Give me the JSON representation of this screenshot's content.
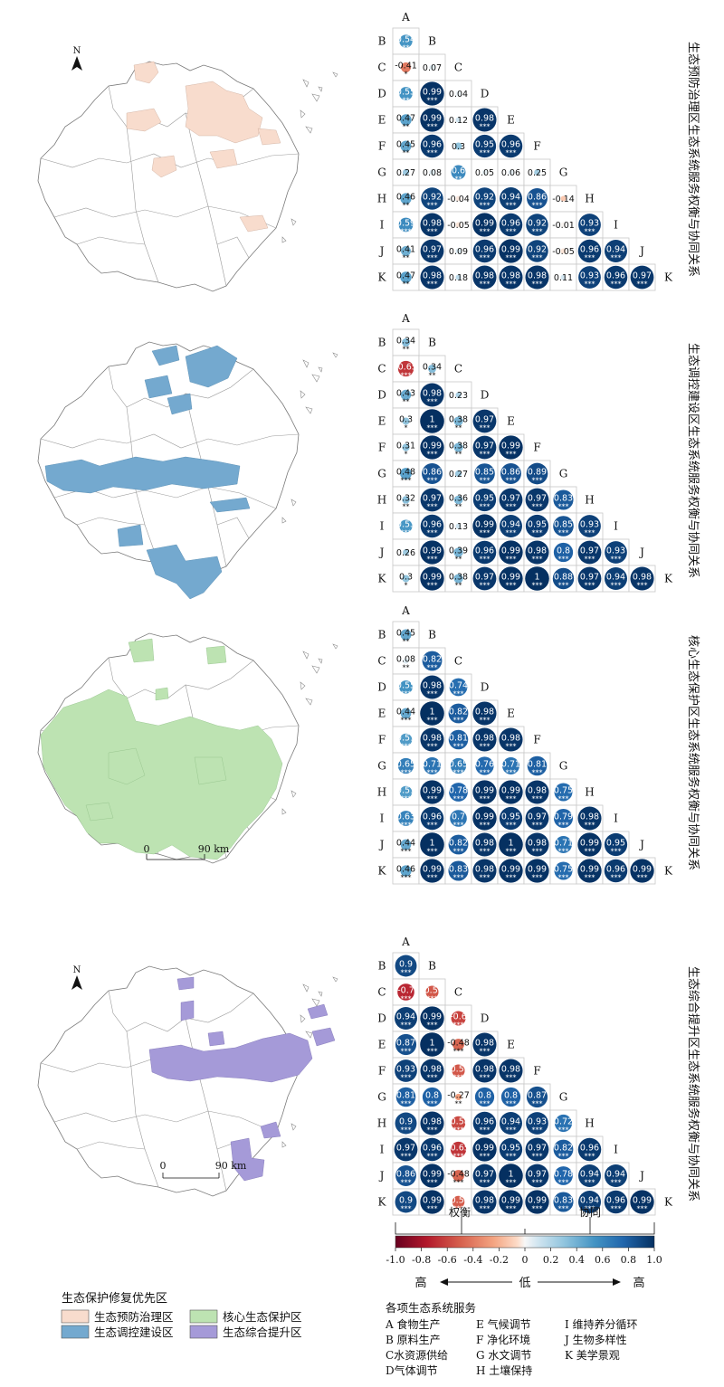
{
  "scale_label": "90 km",
  "scale_zero": "0",
  "north_label": "N",
  "chart_data": {
    "type": "heatmap",
    "variables": [
      "A",
      "B",
      "C",
      "D",
      "E",
      "F",
      "G",
      "H",
      "I",
      "J",
      "K"
    ],
    "panels": [
      {
        "title": "生态预防治理区生态系统服务权衡与协同关系",
        "matrix": [
          [],
          [
            0.54
          ],
          [
            -0.41,
            0.07
          ],
          [
            0.55,
            0.99,
            0.04
          ],
          [
            0.47,
            0.99,
            0.12,
            0.98
          ],
          [
            0.45,
            0.96,
            0.3,
            0.95,
            0.96
          ],
          [
            0.27,
            0.08,
            0.6,
            0.05,
            0.06,
            0.25
          ],
          [
            0.46,
            0.92,
            -0.04,
            0.92,
            0.94,
            0.86,
            -0.14
          ],
          [
            0.59,
            0.98,
            -0.05,
            0.99,
            0.96,
            0.92,
            -0.01,
            0.93
          ],
          [
            0.41,
            0.97,
            0.09,
            0.96,
            0.99,
            0.92,
            -0.05,
            0.96,
            0.94
          ],
          [
            0.47,
            0.98,
            0.18,
            0.98,
            0.98,
            0.98,
            0.11,
            0.93,
            0.96,
            0.97
          ]
        ],
        "stars": [
          [],
          [
            "**"
          ],
          [
            "*",
            ""
          ],
          [
            "**",
            "***",
            ""
          ],
          [
            "**",
            "***",
            "",
            "***"
          ],
          [
            "**",
            "***",
            "",
            "***",
            "***"
          ],
          [
            "",
            "",
            "**",
            "",
            "",
            ""
          ],
          [
            "**",
            "***",
            "",
            "***",
            "***",
            "***",
            ""
          ],
          [
            "***",
            "***",
            "",
            "***",
            "***",
            "***",
            "",
            "***"
          ],
          [
            "**",
            "***",
            "",
            "***",
            "***",
            "***",
            "",
            "***",
            "***"
          ],
          [
            "**",
            "***",
            "",
            "***",
            "***",
            "***",
            "",
            "***",
            "***",
            "***"
          ]
        ]
      },
      {
        "title": "生态调控建设区生态系统服务权衡与协同关系",
        "matrix": [
          [],
          [
            0.34
          ],
          [
            -0.65,
            0.34
          ],
          [
            0.43,
            0.98,
            0.23
          ],
          [
            0.3,
            1,
            0.38,
            0.97
          ],
          [
            0.31,
            0.99,
            0.38,
            0.97,
            0.99
          ],
          [
            0.48,
            0.86,
            0.27,
            0.85,
            0.86,
            0.89
          ],
          [
            0.32,
            0.97,
            0.36,
            0.95,
            0.97,
            0.97,
            0.83
          ],
          [
            0.53,
            0.96,
            0.13,
            0.99,
            0.94,
            0.95,
            0.85,
            0.93
          ],
          [
            0.26,
            0.99,
            0.39,
            0.96,
            0.99,
            0.98,
            0.8,
            0.97,
            0.93
          ],
          [
            0.3,
            0.99,
            0.38,
            0.97,
            0.99,
            1,
            0.88,
            0.97,
            0.94,
            0.98
          ]
        ],
        "stars": [
          [],
          [
            "**"
          ],
          [
            "***",
            "**"
          ],
          [
            "**",
            "***",
            ""
          ],
          [
            "*",
            "***",
            "**",
            "***"
          ],
          [
            "*",
            "***",
            "**",
            "***",
            "***"
          ],
          [
            "***",
            "***",
            "",
            "***",
            "***",
            "***"
          ],
          [
            "**",
            "***",
            "**",
            "***",
            "***",
            "***",
            "***"
          ],
          [
            "***",
            "***",
            "",
            "***",
            "***",
            "***",
            "***",
            "***"
          ],
          [
            "",
            "***",
            "**",
            "***",
            "***",
            "***",
            "***",
            "***",
            "***"
          ],
          [
            "*",
            "***",
            "**",
            "***",
            "***",
            "***",
            "***",
            "***",
            "***",
            "***"
          ]
        ]
      },
      {
        "title": "核心生态保护区生态系统服务权衡与协同关系",
        "matrix": [
          [],
          [
            0.45
          ],
          [
            0.08,
            0.82
          ],
          [
            0.55,
            0.98,
            0.74
          ],
          [
            0.44,
            1,
            0.82,
            0.98
          ],
          [
            0.51,
            0.98,
            0.81,
            0.98,
            0.98
          ],
          [
            0.65,
            0.71,
            0.65,
            0.76,
            0.71,
            0.81
          ],
          [
            0.51,
            0.99,
            0.78,
            0.99,
            0.99,
            0.98,
            0.75
          ],
          [
            0.63,
            0.96,
            0.7,
            0.99,
            0.95,
            0.97,
            0.79,
            0.98
          ],
          [
            0.44,
            1,
            0.82,
            0.98,
            1,
            0.98,
            0.71,
            0.99,
            0.95
          ],
          [
            0.46,
            0.99,
            0.83,
            0.98,
            0.99,
            0.99,
            0.75,
            0.99,
            0.96,
            0.99
          ]
        ],
        "stars": [
          [],
          [
            "**"
          ],
          [
            "**",
            "***"
          ],
          [
            "***",
            "***",
            "***"
          ],
          [
            "***",
            "***",
            "***",
            "***"
          ],
          [
            "***",
            "***",
            "***",
            "***",
            "***"
          ],
          [
            "***",
            "***",
            "***",
            "***",
            "***",
            "***"
          ],
          [
            "***",
            "***",
            "***",
            "***",
            "***",
            "***",
            "***"
          ],
          [
            "***",
            "***",
            "***",
            "***",
            "***",
            "***",
            "***",
            "***"
          ],
          [
            "***",
            "***",
            "***",
            "***",
            "***",
            "***",
            "***",
            "***",
            "***"
          ],
          [
            "***",
            "***",
            "***",
            "***",
            "***",
            "***",
            "***",
            "***",
            "***",
            "***"
          ]
        ]
      },
      {
        "title": "生态综合提升区生态系统服务权衡与协同关系",
        "matrix": [
          [],
          [
            0.9
          ],
          [
            -0.7,
            -0.53
          ],
          [
            0.94,
            0.99,
            -0.6
          ],
          [
            0.87,
            1,
            -0.48,
            0.98
          ],
          [
            0.93,
            0.98,
            -0.53,
            0.98,
            0.98
          ],
          [
            0.81,
            0.8,
            -0.27,
            0.8,
            0.8,
            0.87
          ],
          [
            0.9,
            0.98,
            -0.58,
            0.96,
            0.94,
            0.93,
            0.72
          ],
          [
            0.97,
            0.96,
            -0.65,
            0.99,
            0.95,
            0.97,
            0.82,
            0.96
          ],
          [
            0.86,
            0.99,
            -0.48,
            0.97,
            1,
            0.97,
            0.78,
            0.94,
            0.94
          ],
          [
            0.9,
            0.99,
            -0.51,
            0.98,
            0.99,
            0.99,
            0.83,
            0.94,
            0.96,
            0.99
          ]
        ],
        "stars": [
          [],
          [
            "***"
          ],
          [
            "***",
            "***"
          ],
          [
            "***",
            "***",
            "***"
          ],
          [
            "***",
            "***",
            "***",
            "***"
          ],
          [
            "***",
            "***",
            "***",
            "***",
            "***"
          ],
          [
            "***",
            "***",
            "**",
            "***",
            "***",
            "***"
          ],
          [
            "***",
            "***",
            "***",
            "***",
            "***",
            "***",
            "***"
          ],
          [
            "***",
            "***",
            "***",
            "***",
            "***",
            "***",
            "***",
            "***"
          ],
          [
            "***",
            "***",
            "***",
            "***",
            "***",
            "***",
            "***",
            "***",
            "***"
          ],
          [
            "***",
            "***",
            "***",
            "***",
            "***",
            "***",
            "***",
            "***",
            "***",
            "***"
          ]
        ]
      }
    ],
    "colorbar": {
      "ticks": [
        "-1.0",
        "-0.8",
        "-0.6",
        "-0.4",
        "-0.2",
        "0",
        "0.2",
        "0.4",
        "0.6",
        "0.8",
        "1.0"
      ],
      "range": [
        -1,
        1
      ],
      "trade_off_label": "权衡",
      "synergy_label": "协同",
      "low_label": "低",
      "high_left_label": "高",
      "high_right_label": "高"
    }
  },
  "region_legend": {
    "title": "生态保护修复优先区",
    "items": [
      {
        "label": "生态预防治理区",
        "color": "#f8dccd"
      },
      {
        "label": "核心生态保护区",
        "color": "#bde3b2"
      },
      {
        "label": "生态调控建设区",
        "color": "#74a9cf"
      },
      {
        "label": "生态综合提升区",
        "color": "#a59ad8"
      }
    ]
  },
  "services_legend": {
    "title": "各项生态系统服务",
    "columns": [
      [
        "A 食物生产",
        "B 原料生产",
        "C水资源供给",
        "D气体调节"
      ],
      [
        "E 气候调节",
        "F  净化环境",
        "G 水文调节",
        "H 土壤保持"
      ],
      [
        "I   维持养分循环",
        "J  生物多样性",
        "K 美学景观"
      ]
    ]
  },
  "colors": {
    "negative": "#b2182b",
    "neutral": "#f7f7f7",
    "positive": "#08306b",
    "boundary": "#7a7a7a"
  }
}
